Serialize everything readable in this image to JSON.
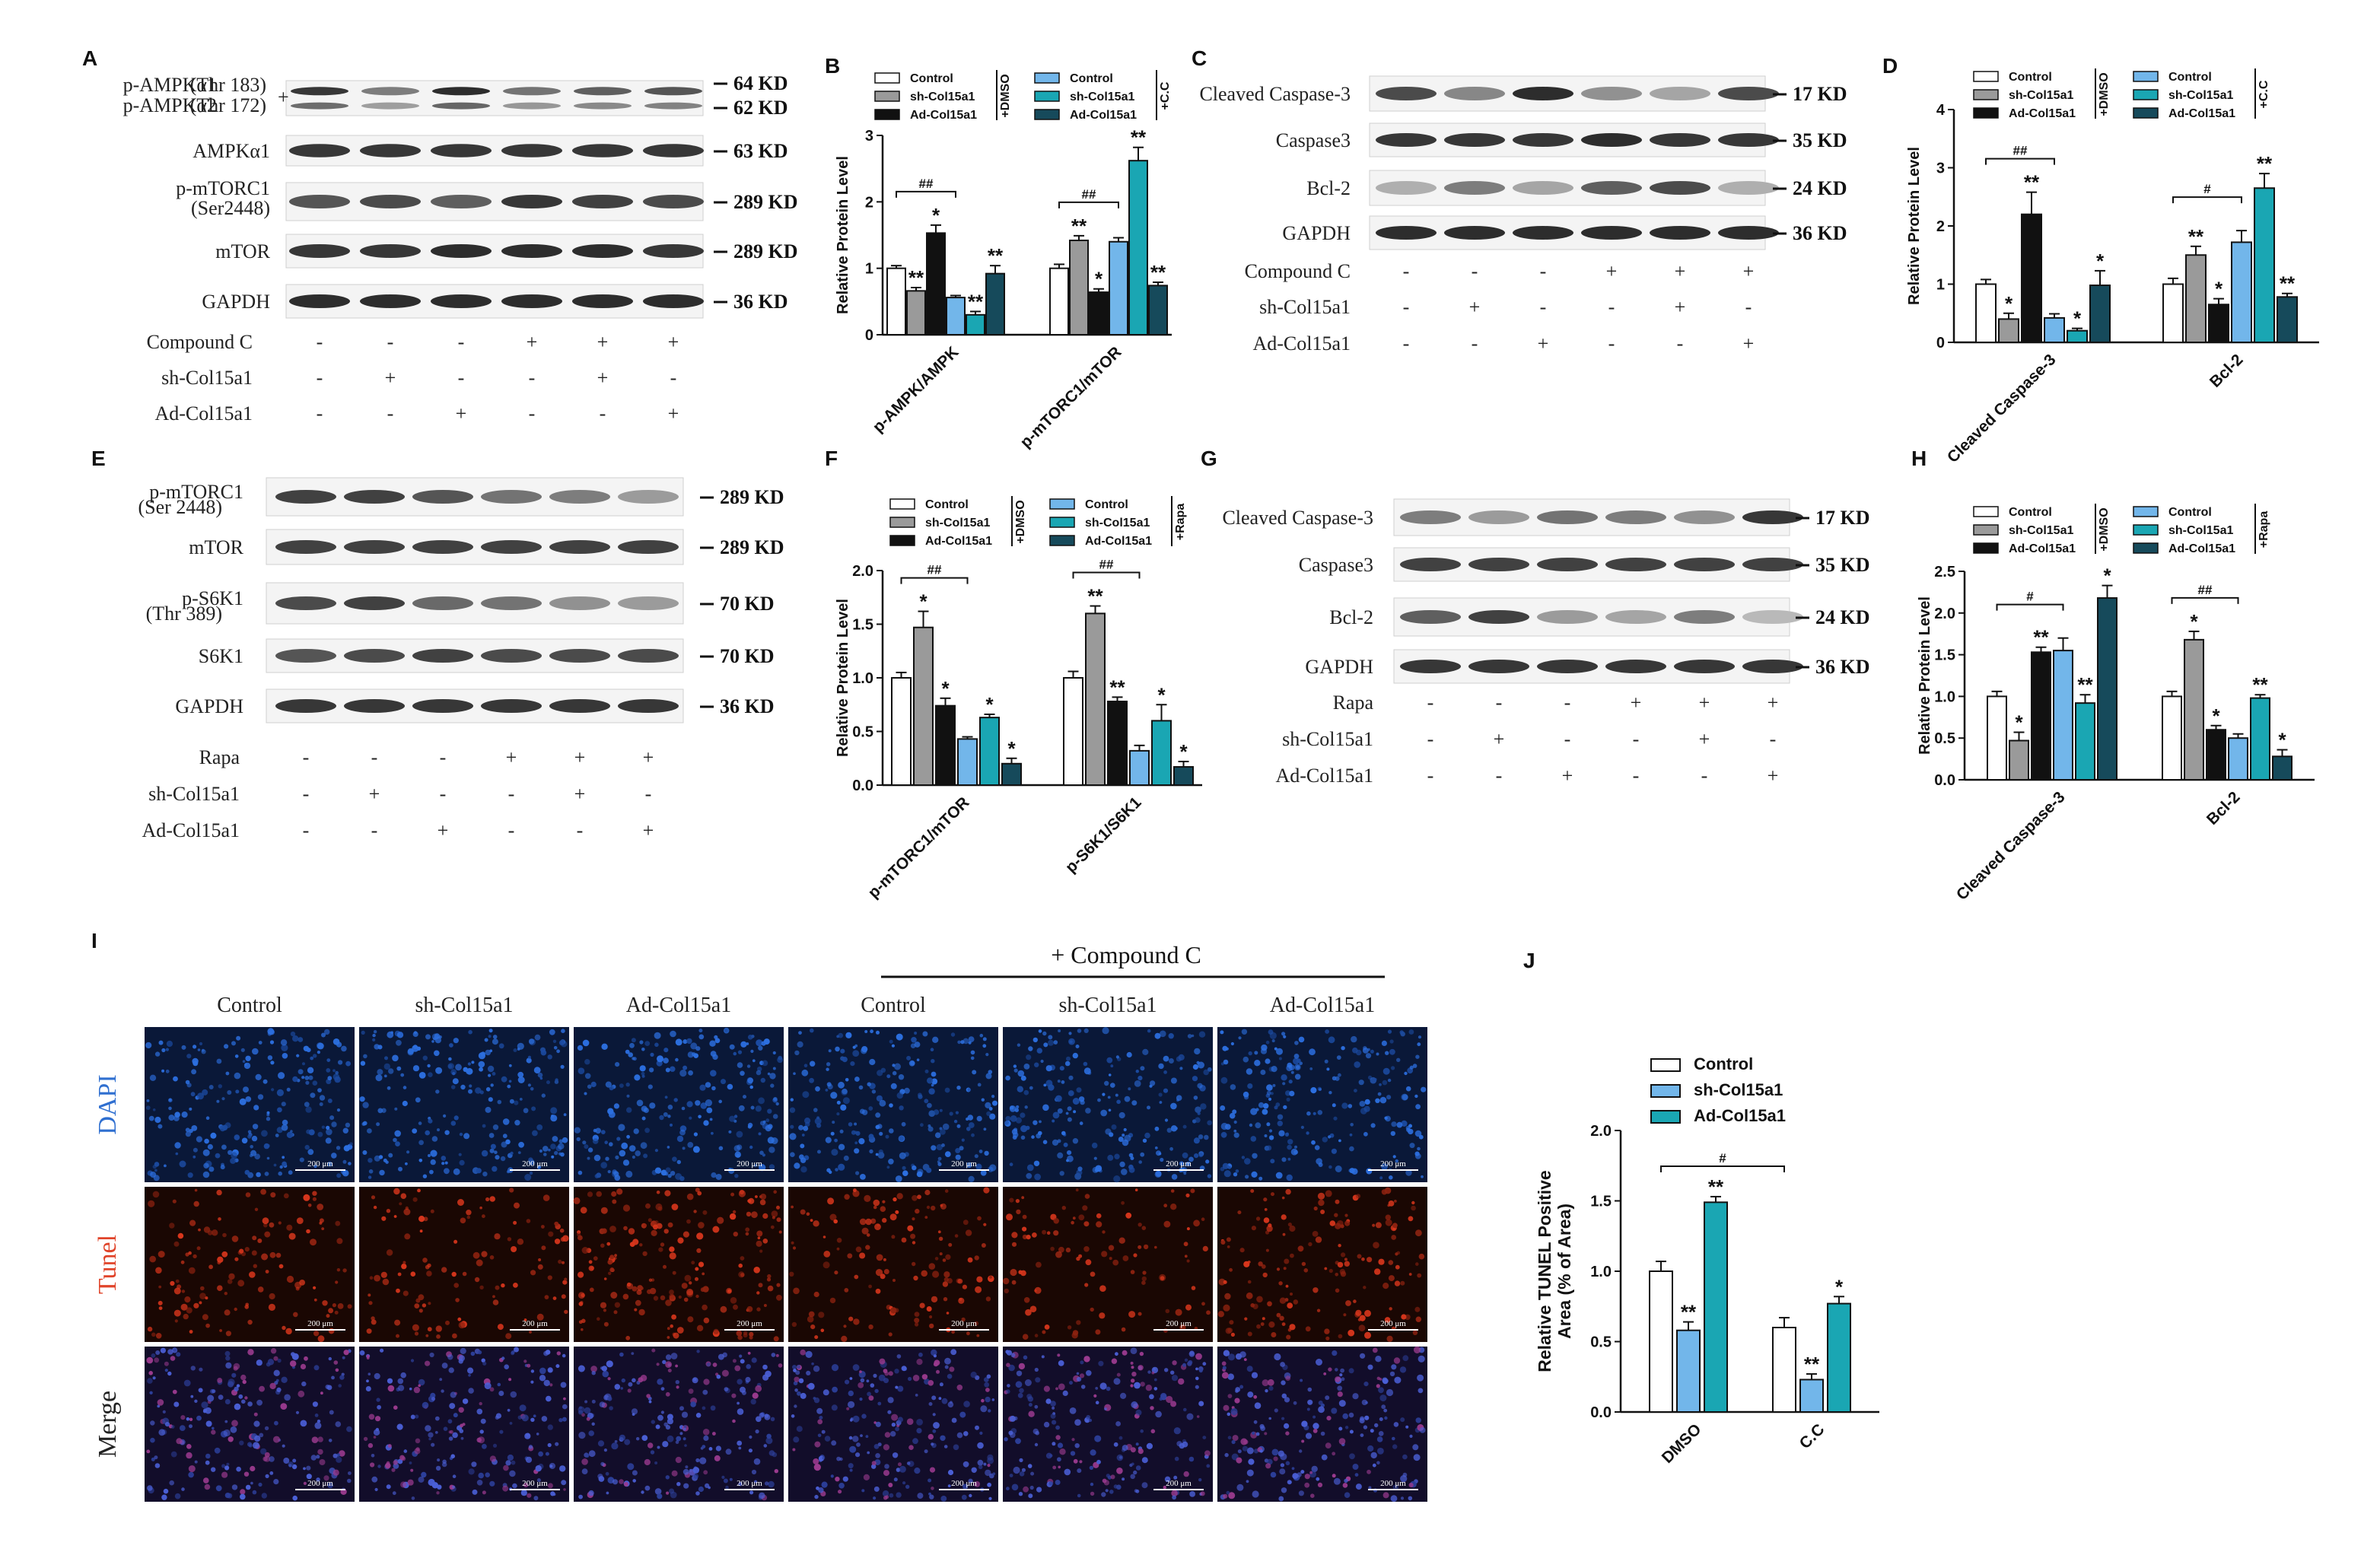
{
  "panels": {
    "A": {
      "letter": "A",
      "bands": [
        {
          "label": "p-AMPKα1 (Thr 183)\np-AMPKα2 (Thr 172)",
          "lines": [
            "p-AMPKα1",
            "p-AMPKα2"
          ],
          "subs": [
            "(Thr 183)",
            "(Thr 172)"
          ],
          "plus": "+",
          "kd": [
            "64 KD",
            "62 KD"
          ]
        },
        {
          "label": "AMPKα1",
          "kd": [
            "63 KD"
          ]
        },
        {
          "label": "p-mTORC1 (Ser2448)",
          "lines": [
            "p-mTORC1",
            "(Ser2448)"
          ],
          "kd": [
            "289 KD"
          ]
        },
        {
          "label": "mTOR",
          "kd": [
            "289 KD"
          ]
        },
        {
          "label": "GAPDH",
          "kd": [
            "36 KD"
          ]
        }
      ],
      "conditions": [
        {
          "name": "Compound C",
          "signs": [
            "-",
            "-",
            "-",
            "+",
            "+",
            "+"
          ]
        },
        {
          "name": "sh-Col15a1",
          "signs": [
            "-",
            "+",
            "-",
            "-",
            "+",
            "-"
          ]
        },
        {
          "name": "Ad-Col15a1",
          "signs": [
            "-",
            "-",
            "+",
            "-",
            "-",
            "+"
          ]
        }
      ]
    },
    "C": {
      "letter": "C",
      "bands": [
        {
          "label": "Cleaved Caspase-3",
          "kd": [
            "17 KD"
          ]
        },
        {
          "label": "Caspase3",
          "kd": [
            "35 KD"
          ]
        },
        {
          "label": "Bcl-2",
          "kd": [
            "24 KD"
          ]
        },
        {
          "label": "GAPDH",
          "kd": [
            "36 KD"
          ]
        }
      ],
      "conditions": [
        {
          "name": "Compound C",
          "signs": [
            "-",
            "-",
            "-",
            "+",
            "+",
            "+"
          ]
        },
        {
          "name": "sh-Col15a1",
          "signs": [
            "-",
            "+",
            "-",
            "-",
            "+",
            "-"
          ]
        },
        {
          "name": "Ad-Col15a1",
          "signs": [
            "-",
            "-",
            "+",
            "-",
            "-",
            "+"
          ]
        }
      ]
    },
    "E": {
      "letter": "E",
      "bands": [
        {
          "label": "p-mTORC1",
          "sub": "(Ser 2448)",
          "kd": [
            "289 KD"
          ]
        },
        {
          "label": "mTOR",
          "kd": [
            "289 KD"
          ]
        },
        {
          "label": "p-S6K1",
          "sub": "(Thr 389)",
          "kd": [
            "70 KD"
          ]
        },
        {
          "label": "S6K1",
          "kd": [
            "70 KD"
          ]
        },
        {
          "label": "GAPDH",
          "kd": [
            "36 KD"
          ]
        }
      ],
      "conditions": [
        {
          "name": "Rapa",
          "signs": [
            "-",
            "-",
            "-",
            "+",
            "+",
            "+"
          ]
        },
        {
          "name": "sh-Col15a1",
          "signs": [
            "-",
            "+",
            "-",
            "-",
            "+",
            "-"
          ]
        },
        {
          "name": "Ad-Col15a1",
          "signs": [
            "-",
            "-",
            "+",
            "-",
            "-",
            "+"
          ]
        }
      ]
    },
    "G": {
      "letter": "G",
      "bands": [
        {
          "label": "Cleaved Caspase-3",
          "kd": [
            "17 KD"
          ]
        },
        {
          "label": "Caspase3",
          "kd": [
            "35 KD"
          ]
        },
        {
          "label": "Bcl-2",
          "kd": [
            "24 KD"
          ]
        },
        {
          "label": "GAPDH",
          "kd": [
            "36 KD"
          ]
        }
      ],
      "conditions": [
        {
          "name": "Rapa",
          "signs": [
            "-",
            "-",
            "-",
            "+",
            "+",
            "+"
          ]
        },
        {
          "name": "sh-Col15a1",
          "signs": [
            "-",
            "+",
            "-",
            "-",
            "+",
            "-"
          ]
        },
        {
          "name": "Ad-Col15a1",
          "signs": [
            "-",
            "-",
            "+",
            "-",
            "-",
            "+"
          ]
        }
      ]
    },
    "I": {
      "letter": "I",
      "compound_label": "+ Compound C",
      "columns": [
        "Control",
        "sh-Col15a1",
        "Ad-Col15a1",
        "Control",
        "sh-Col15a1",
        "Ad-Col15a1"
      ],
      "rows": [
        {
          "name": "DAPI",
          "color": "#2f6fd0"
        },
        {
          "name": "Tunel",
          "color": "#e0442a"
        },
        {
          "name": "Merge",
          "color": "#222222"
        }
      ],
      "scale_label": "200 μm"
    },
    "J_letter": "J"
  },
  "colors": {
    "control": "#ffffff",
    "sh": "#9a9a9a",
    "ad": "#111111",
    "cc_control": "#72b6ea",
    "cc_sh": "#1aa6b3",
    "cc_ad": "#164a5b",
    "dapi": "#1e4fa8",
    "tunel": "#c23018",
    "merge": "#4a3f95"
  },
  "chart_data": [
    {
      "panel": "B",
      "type": "bar",
      "ylabel": "Relative Protein Level",
      "ylim": [
        0,
        3
      ],
      "yticks": [
        0,
        1,
        2,
        3
      ],
      "categories": [
        "p-AMPK/AMPK",
        "p-mTORC1/mTOR"
      ],
      "legend": {
        "left": [
          "Control",
          "sh-Col15a1",
          "Ad-Col15a1"
        ],
        "left_tag": "+DMSO",
        "right": [
          "Control",
          "sh-Col15a1",
          "Ad-Col15a1"
        ],
        "right_tag": "+C.C"
      },
      "series": [
        {
          "name": "Control",
          "values": [
            1.0,
            1.0
          ],
          "err": [
            0.04,
            0.06
          ],
          "sig": [
            "",
            ""
          ]
        },
        {
          "name": "sh-Col15a1",
          "values": [
            0.66,
            1.42
          ],
          "err": [
            0.05,
            0.07
          ],
          "sig": [
            "**",
            "**"
          ]
        },
        {
          "name": "Ad-Col15a1",
          "values": [
            1.53,
            0.64
          ],
          "err": [
            0.12,
            0.05
          ],
          "sig": [
            "*",
            "*"
          ]
        },
        {
          "name": "Control",
          "values": [
            0.56,
            1.4
          ],
          "err": [
            0.03,
            0.06
          ],
          "sig": [
            "",
            ""
          ]
        },
        {
          "name": "sh-Col15a1",
          "values": [
            0.3,
            2.62
          ],
          "err": [
            0.05,
            0.2
          ],
          "sig": [
            "**",
            "**"
          ]
        },
        {
          "name": "Ad-Col15a1",
          "values": [
            0.92,
            0.74
          ],
          "err": [
            0.12,
            0.05
          ],
          "sig": [
            "**",
            "**"
          ]
        }
      ],
      "brackets": [
        {
          "group": 0,
          "from": 0,
          "to": 3,
          "label": "##"
        },
        {
          "group": 1,
          "from": 0,
          "to": 3,
          "label": "##"
        }
      ]
    },
    {
      "panel": "D",
      "type": "bar",
      "ylabel": "Relative Protein Level",
      "ylim": [
        0,
        4
      ],
      "yticks": [
        0,
        1,
        2,
        3,
        4
      ],
      "categories": [
        "Cleaved Caspase-3",
        "Bcl-2"
      ],
      "legend": {
        "left": [
          "Control",
          "sh-Col15a1",
          "Ad-Col15a1"
        ],
        "left_tag": "+DMSO",
        "right": [
          "Control",
          "sh-Col15a1",
          "Ad-Col15a1"
        ],
        "right_tag": "+C.C"
      },
      "series": [
        {
          "name": "Control",
          "values": [
            1.0,
            1.0
          ],
          "err": [
            0.08,
            0.1
          ],
          "sig": [
            "",
            ""
          ]
        },
        {
          "name": "sh-Col15a1",
          "values": [
            0.4,
            1.5
          ],
          "err": [
            0.1,
            0.15
          ],
          "sig": [
            "*",
            "**"
          ]
        },
        {
          "name": "Ad-Col15a1",
          "values": [
            2.2,
            0.65
          ],
          "err": [
            0.38,
            0.1
          ],
          "sig": [
            "**",
            "*"
          ]
        },
        {
          "name": "Control",
          "values": [
            0.42,
            1.72
          ],
          "err": [
            0.07,
            0.2
          ],
          "sig": [
            "",
            ""
          ]
        },
        {
          "name": "sh-Col15a1",
          "values": [
            0.2,
            2.65
          ],
          "err": [
            0.04,
            0.25
          ],
          "sig": [
            "*",
            "**"
          ]
        },
        {
          "name": "Ad-Col15a1",
          "values": [
            0.98,
            0.78
          ],
          "err": [
            0.25,
            0.06
          ],
          "sig": [
            "*",
            "**"
          ]
        }
      ],
      "brackets": [
        {
          "group": 0,
          "from": 0,
          "to": 3,
          "label": "##"
        },
        {
          "group": 1,
          "from": 0,
          "to": 3,
          "label": "#"
        }
      ]
    },
    {
      "panel": "F",
      "type": "bar",
      "ylabel": "Relative Protein Level",
      "ylim": [
        0,
        2
      ],
      "yticks": [
        0.0,
        0.5,
        1.0,
        1.5,
        2.0
      ],
      "categories": [
        "p-mTORC1/mTOR",
        "p-S6K1/S6K1"
      ],
      "legend": {
        "left": [
          "Control",
          "sh-Col15a1",
          "Ad-Col15a1"
        ],
        "left_tag": "+DMSO",
        "right": [
          "Control",
          "sh-Col15a1",
          "Ad-Col15a1"
        ],
        "right_tag": "+Rapa"
      },
      "series": [
        {
          "name": "Control",
          "values": [
            1.0,
            1.0
          ],
          "err": [
            0.05,
            0.06
          ],
          "sig": [
            "",
            ""
          ]
        },
        {
          "name": "sh-Col15a1",
          "values": [
            1.47,
            1.6
          ],
          "err": [
            0.15,
            0.07
          ],
          "sig": [
            "*",
            "**"
          ]
        },
        {
          "name": "Ad-Col15a1",
          "values": [
            0.74,
            0.78
          ],
          "err": [
            0.07,
            0.04
          ],
          "sig": [
            "*",
            "**"
          ]
        },
        {
          "name": "Control",
          "values": [
            0.43,
            0.32
          ],
          "err": [
            0.02,
            0.05
          ],
          "sig": [
            "",
            ""
          ]
        },
        {
          "name": "sh-Col15a1",
          "values": [
            0.63,
            0.6
          ],
          "err": [
            0.03,
            0.15
          ],
          "sig": [
            "*",
            "*"
          ]
        },
        {
          "name": "Ad-Col15a1",
          "values": [
            0.2,
            0.17
          ],
          "err": [
            0.05,
            0.05
          ],
          "sig": [
            "*",
            "*"
          ]
        }
      ],
      "brackets": [
        {
          "group": 0,
          "from": 0,
          "to": 3,
          "label": "##"
        },
        {
          "group": 1,
          "from": 0,
          "to": 3,
          "label": "##"
        }
      ]
    },
    {
      "panel": "H",
      "type": "bar",
      "ylabel": "Relative Protein Level",
      "ylim": [
        0,
        2.5
      ],
      "yticks": [
        0.0,
        0.5,
        1.0,
        1.5,
        2.0,
        2.5
      ],
      "categories": [
        "Cleaved Caspase-3",
        "Bcl-2"
      ],
      "legend": {
        "left": [
          "Control",
          "sh-Col15a1",
          "Ad-Col15a1"
        ],
        "left_tag": "+DMSO",
        "right": [
          "Control",
          "sh-Col15a1",
          "Ad-Col15a1"
        ],
        "right_tag": "+Rapa"
      },
      "series": [
        {
          "name": "Control",
          "values": [
            1.0,
            1.0
          ],
          "err": [
            0.06,
            0.06
          ],
          "sig": [
            "",
            ""
          ]
        },
        {
          "name": "sh-Col15a1",
          "values": [
            0.47,
            1.68
          ],
          "err": [
            0.1,
            0.1
          ],
          "sig": [
            "*",
            "*"
          ]
        },
        {
          "name": "Ad-Col15a1",
          "values": [
            1.53,
            0.6
          ],
          "err": [
            0.06,
            0.05
          ],
          "sig": [
            "**",
            "*"
          ]
        },
        {
          "name": "Control",
          "values": [
            1.55,
            0.5
          ],
          "err": [
            0.15,
            0.05
          ],
          "sig": [
            "",
            ""
          ]
        },
        {
          "name": "sh-Col15a1",
          "values": [
            0.92,
            0.98
          ],
          "err": [
            0.1,
            0.04
          ],
          "sig": [
            "**",
            "**"
          ]
        },
        {
          "name": "Ad-Col15a1",
          "values": [
            2.18,
            0.28
          ],
          "err": [
            0.15,
            0.08
          ],
          "sig": [
            "*",
            "*"
          ]
        }
      ],
      "brackets": [
        {
          "group": 0,
          "from": 0,
          "to": 3,
          "label": "#"
        },
        {
          "group": 1,
          "from": 0,
          "to": 3,
          "label": "##"
        }
      ]
    },
    {
      "panel": "J",
      "type": "bar",
      "ylabel": "Relative TUNEL Positive Area (% of Area)",
      "ylabel_lines": [
        "Relative TUNEL Positive",
        "Area (% of Area)"
      ],
      "ylim": [
        0,
        2
      ],
      "yticks": [
        0.0,
        0.5,
        1.0,
        1.5,
        2.0
      ],
      "categories": [
        "DMSO",
        "C.C"
      ],
      "legend": {
        "items": [
          "Control",
          "sh-Col15a1",
          "Ad-Col15a1"
        ]
      },
      "series": [
        {
          "name": "Control",
          "values": [
            1.0,
            0.6
          ],
          "err": [
            0.07,
            0.07
          ],
          "sig": [
            "",
            ""
          ]
        },
        {
          "name": "sh-Col15a1",
          "values": [
            0.58,
            0.23
          ],
          "err": [
            0.06,
            0.04
          ],
          "sig": [
            "**",
            "**"
          ]
        },
        {
          "name": "Ad-Col15a1",
          "values": [
            1.49,
            0.77
          ],
          "err": [
            0.04,
            0.05
          ],
          "sig": [
            "**",
            "*"
          ]
        }
      ],
      "brackets": [
        {
          "cross": true,
          "label": "#"
        }
      ]
    }
  ]
}
